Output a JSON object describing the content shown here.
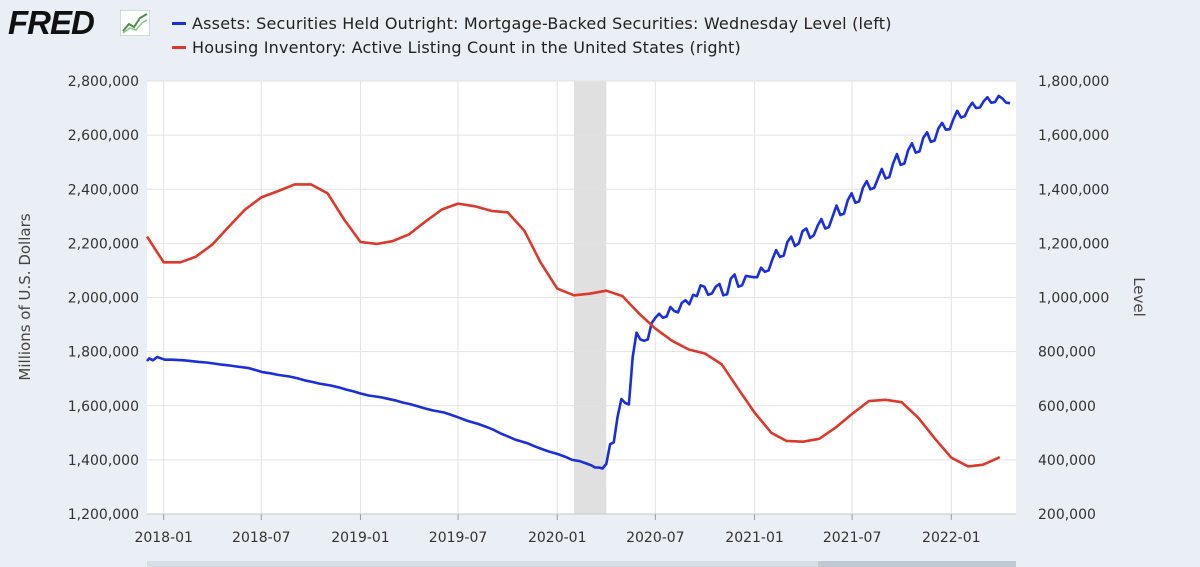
{
  "header": {
    "logo_text": "FRED"
  },
  "chart_data": {
    "type": "line",
    "title": "",
    "legend": [
      {
        "name": "Assets: Securities Held Outright: Mortgage-Backed Securities: Wednesday Level (left)",
        "color": "#1a2fd6"
      },
      {
        "name": "Housing Inventory: Active Listing Count in the United States (right)",
        "color": "#d93a2b"
      }
    ],
    "left_axis": {
      "label": "Millions of U.S. Dollars",
      "range": [
        1200000,
        2800000
      ],
      "ticks": [
        1200000,
        1400000,
        1600000,
        1800000,
        2000000,
        2200000,
        2400000,
        2600000,
        2800000
      ],
      "tick_labels": [
        "1,200,000",
        "1,400,000",
        "1,600,000",
        "1,800,000",
        "2,000,000",
        "2,200,000",
        "2,400,000",
        "2,600,000",
        "2,800,000"
      ]
    },
    "right_axis": {
      "label": "Level",
      "range": [
        200000,
        1800000
      ],
      "ticks": [
        200000,
        400000,
        600000,
        800000,
        1000000,
        1200000,
        1400000,
        1600000,
        1800000
      ],
      "tick_labels": [
        "200,000",
        "400,000",
        "600,000",
        "800,000",
        "1,000,000",
        "1,200,000",
        "1,400,000",
        "1,600,000",
        "1,800,000"
      ]
    },
    "x_axis": {
      "range": [
        "2017-12",
        "2022-05"
      ],
      "ticks": [
        "2018-01",
        "2018-07",
        "2019-01",
        "2019-07",
        "2020-01",
        "2020-07",
        "2021-01",
        "2021-07",
        "2022-01"
      ]
    },
    "recession": {
      "start": "2020-02",
      "end": "2020-04"
    },
    "series": [
      {
        "name": "Mortgage-Backed Securities (left)",
        "axis": "left",
        "color": "#1a2fd6",
        "points": [
          [
            "2017-12-01",
            1765000
          ],
          [
            "2017-12-05",
            1775000
          ],
          [
            "2017-12-12",
            1768000
          ],
          [
            "2017-12-20",
            1780000
          ],
          [
            "2018-01-03",
            1770000
          ],
          [
            "2018-01-17",
            1770000
          ],
          [
            "2018-02-07",
            1768000
          ],
          [
            "2018-02-21",
            1765000
          ],
          [
            "2018-03-07",
            1762000
          ],
          [
            "2018-03-21",
            1760000
          ],
          [
            "2018-04-04",
            1756000
          ],
          [
            "2018-04-18",
            1752000
          ],
          [
            "2018-05-02",
            1749000
          ],
          [
            "2018-05-16",
            1745000
          ],
          [
            "2018-06-06",
            1740000
          ],
          [
            "2018-06-20",
            1732000
          ],
          [
            "2018-07-04",
            1724000
          ],
          [
            "2018-07-18",
            1720000
          ],
          [
            "2018-08-01",
            1714000
          ],
          [
            "2018-08-22",
            1708000
          ],
          [
            "2018-09-05",
            1702000
          ],
          [
            "2018-09-19",
            1694000
          ],
          [
            "2018-10-03",
            1688000
          ],
          [
            "2018-10-17",
            1682000
          ],
          [
            "2018-11-07",
            1675000
          ],
          [
            "2018-11-21",
            1668000
          ],
          [
            "2018-12-05",
            1660000
          ],
          [
            "2018-12-19",
            1653000
          ],
          [
            "2019-01-02",
            1645000
          ],
          [
            "2019-01-16",
            1638000
          ],
          [
            "2019-02-06",
            1632000
          ],
          [
            "2019-02-20",
            1626000
          ],
          [
            "2019-03-06",
            1620000
          ],
          [
            "2019-03-20",
            1612000
          ],
          [
            "2019-04-03",
            1606000
          ],
          [
            "2019-04-17",
            1598000
          ],
          [
            "2019-05-01",
            1590000
          ],
          [
            "2019-05-15",
            1583000
          ],
          [
            "2019-06-05",
            1575000
          ],
          [
            "2019-06-19",
            1566000
          ],
          [
            "2019-07-03",
            1556000
          ],
          [
            "2019-07-17",
            1545000
          ],
          [
            "2019-08-07",
            1533000
          ],
          [
            "2019-08-21",
            1523000
          ],
          [
            "2019-09-04",
            1512000
          ],
          [
            "2019-09-18",
            1498000
          ],
          [
            "2019-10-02",
            1486000
          ],
          [
            "2019-10-16",
            1474000
          ],
          [
            "2019-11-06",
            1462000
          ],
          [
            "2019-11-20",
            1450000
          ],
          [
            "2019-12-04",
            1440000
          ],
          [
            "2019-12-18",
            1430000
          ],
          [
            "2020-01-01",
            1422000
          ],
          [
            "2020-01-15",
            1412000
          ],
          [
            "2020-01-29",
            1400000
          ],
          [
            "2020-02-12",
            1395000
          ],
          [
            "2020-02-26",
            1385000
          ],
          [
            "2020-03-04",
            1380000
          ],
          [
            "2020-03-11",
            1372000
          ],
          [
            "2020-03-18",
            1372000
          ],
          [
            "2020-03-25",
            1368000
          ],
          [
            "2020-04-01",
            1385000
          ],
          [
            "2020-04-08",
            1458000
          ],
          [
            "2020-04-15",
            1465000
          ],
          [
            "2020-04-22",
            1560000
          ],
          [
            "2020-04-29",
            1625000
          ],
          [
            "2020-05-06",
            1610000
          ],
          [
            "2020-05-13",
            1605000
          ],
          [
            "2020-05-20",
            1780000
          ],
          [
            "2020-05-27",
            1870000
          ],
          [
            "2020-06-03",
            1845000
          ],
          [
            "2020-06-10",
            1840000
          ],
          [
            "2020-06-17",
            1845000
          ],
          [
            "2020-06-24",
            1905000
          ],
          [
            "2020-07-01",
            1925000
          ],
          [
            "2020-07-08",
            1940000
          ],
          [
            "2020-07-15",
            1925000
          ],
          [
            "2020-07-22",
            1930000
          ],
          [
            "2020-07-29",
            1965000
          ],
          [
            "2020-08-05",
            1950000
          ],
          [
            "2020-08-12",
            1945000
          ],
          [
            "2020-08-19",
            1980000
          ],
          [
            "2020-08-26",
            1990000
          ],
          [
            "2020-09-02",
            1975000
          ],
          [
            "2020-09-09",
            2010000
          ],
          [
            "2020-09-16",
            2005000
          ],
          [
            "2020-09-23",
            2045000
          ],
          [
            "2020-09-30",
            2040000
          ],
          [
            "2020-10-07",
            2010000
          ],
          [
            "2020-10-14",
            2015000
          ],
          [
            "2020-10-21",
            2040000
          ],
          [
            "2020-10-28",
            2050000
          ],
          [
            "2020-11-04",
            2008000
          ],
          [
            "2020-11-11",
            2012000
          ],
          [
            "2020-11-18",
            2070000
          ],
          [
            "2020-11-25",
            2085000
          ],
          [
            "2020-12-02",
            2040000
          ],
          [
            "2020-12-09",
            2045000
          ],
          [
            "2020-12-16",
            2080000
          ],
          [
            "2020-12-30",
            2075000
          ],
          [
            "2021-01-06",
            2075000
          ],
          [
            "2021-01-13",
            2110000
          ],
          [
            "2021-01-20",
            2095000
          ],
          [
            "2021-01-27",
            2100000
          ],
          [
            "2021-02-03",
            2140000
          ],
          [
            "2021-02-10",
            2175000
          ],
          [
            "2021-02-17",
            2150000
          ],
          [
            "2021-02-24",
            2155000
          ],
          [
            "2021-03-03",
            2205000
          ],
          [
            "2021-03-10",
            2225000
          ],
          [
            "2021-03-17",
            2190000
          ],
          [
            "2021-03-24",
            2200000
          ],
          [
            "2021-03-31",
            2245000
          ],
          [
            "2021-04-07",
            2255000
          ],
          [
            "2021-04-14",
            2220000
          ],
          [
            "2021-04-21",
            2230000
          ],
          [
            "2021-04-28",
            2265000
          ],
          [
            "2021-05-05",
            2290000
          ],
          [
            "2021-05-12",
            2255000
          ],
          [
            "2021-05-19",
            2260000
          ],
          [
            "2021-05-26",
            2300000
          ],
          [
            "2021-06-02",
            2340000
          ],
          [
            "2021-06-09",
            2305000
          ],
          [
            "2021-06-16",
            2310000
          ],
          [
            "2021-06-23",
            2360000
          ],
          [
            "2021-06-30",
            2385000
          ],
          [
            "2021-07-07",
            2350000
          ],
          [
            "2021-07-14",
            2355000
          ],
          [
            "2021-07-21",
            2405000
          ],
          [
            "2021-07-28",
            2430000
          ],
          [
            "2021-08-04",
            2400000
          ],
          [
            "2021-08-11",
            2405000
          ],
          [
            "2021-08-18",
            2440000
          ],
          [
            "2021-08-25",
            2475000
          ],
          [
            "2021-09-01",
            2440000
          ],
          [
            "2021-09-08",
            2445000
          ],
          [
            "2021-09-15",
            2495000
          ],
          [
            "2021-09-22",
            2530000
          ],
          [
            "2021-09-29",
            2490000
          ],
          [
            "2021-10-06",
            2495000
          ],
          [
            "2021-10-13",
            2545000
          ],
          [
            "2021-10-20",
            2570000
          ],
          [
            "2021-10-27",
            2535000
          ],
          [
            "2021-11-03",
            2540000
          ],
          [
            "2021-11-10",
            2590000
          ],
          [
            "2021-11-17",
            2610000
          ],
          [
            "2021-11-24",
            2575000
          ],
          [
            "2021-12-01",
            2580000
          ],
          [
            "2021-12-08",
            2625000
          ],
          [
            "2021-12-15",
            2645000
          ],
          [
            "2021-12-22",
            2620000
          ],
          [
            "2021-12-29",
            2622000
          ],
          [
            "2022-01-05",
            2660000
          ],
          [
            "2022-01-12",
            2690000
          ],
          [
            "2022-01-19",
            2665000
          ],
          [
            "2022-01-26",
            2670000
          ],
          [
            "2022-02-02",
            2700000
          ],
          [
            "2022-02-09",
            2720000
          ],
          [
            "2022-02-16",
            2700000
          ],
          [
            "2022-02-23",
            2702000
          ],
          [
            "2022-03-02",
            2725000
          ],
          [
            "2022-03-09",
            2740000
          ],
          [
            "2022-03-16",
            2720000
          ],
          [
            "2022-03-23",
            2722000
          ],
          [
            "2022-03-30",
            2745000
          ],
          [
            "2022-04-06",
            2735000
          ],
          [
            "2022-04-13",
            2720000
          ],
          [
            "2022-04-20",
            2718000
          ]
        ]
      },
      {
        "name": "Housing Inventory Active Listing Count (right)",
        "axis": "right",
        "color": "#d93a2b",
        "points": [
          [
            "2017-12-01",
            1225000
          ],
          [
            "2018-01-01",
            1130000
          ],
          [
            "2018-02-01",
            1130000
          ],
          [
            "2018-03-01",
            1150000
          ],
          [
            "2018-04-01",
            1195000
          ],
          [
            "2018-05-01",
            1260000
          ],
          [
            "2018-06-01",
            1325000
          ],
          [
            "2018-07-01",
            1370000
          ],
          [
            "2018-08-01",
            1393000
          ],
          [
            "2018-09-01",
            1418000
          ],
          [
            "2018-10-01",
            1418000
          ],
          [
            "2018-11-01",
            1385000
          ],
          [
            "2018-12-01",
            1290000
          ],
          [
            "2019-01-01",
            1205000
          ],
          [
            "2019-02-01",
            1198000
          ],
          [
            "2019-03-01",
            1208000
          ],
          [
            "2019-04-01",
            1233000
          ],
          [
            "2019-05-01",
            1280000
          ],
          [
            "2019-06-01",
            1325000
          ],
          [
            "2019-07-01",
            1347000
          ],
          [
            "2019-08-01",
            1337000
          ],
          [
            "2019-09-01",
            1320000
          ],
          [
            "2019-10-01",
            1315000
          ],
          [
            "2019-11-01",
            1247000
          ],
          [
            "2019-12-01",
            1130000
          ],
          [
            "2020-01-01",
            1033000
          ],
          [
            "2020-02-01",
            1008000
          ],
          [
            "2020-03-01",
            1014000
          ],
          [
            "2020-04-01",
            1025000
          ],
          [
            "2020-05-01",
            1005000
          ],
          [
            "2020-06-01",
            940000
          ],
          [
            "2020-07-01",
            885000
          ],
          [
            "2020-08-01",
            840000
          ],
          [
            "2020-09-01",
            808000
          ],
          [
            "2020-10-01",
            793000
          ],
          [
            "2020-11-01",
            753000
          ],
          [
            "2020-12-01",
            665000
          ],
          [
            "2021-01-01",
            575000
          ],
          [
            "2021-02-01",
            500000
          ],
          [
            "2021-03-01",
            470000
          ],
          [
            "2021-04-01",
            467000
          ],
          [
            "2021-05-01",
            478000
          ],
          [
            "2021-06-01",
            520000
          ],
          [
            "2021-07-01",
            570000
          ],
          [
            "2021-08-01",
            617000
          ],
          [
            "2021-09-01",
            622000
          ],
          [
            "2021-10-01",
            613000
          ],
          [
            "2021-11-01",
            555000
          ],
          [
            "2021-12-01",
            480000
          ],
          [
            "2022-01-01",
            408000
          ],
          [
            "2022-02-01",
            376000
          ],
          [
            "2022-03-01",
            382000
          ],
          [
            "2022-04-01",
            410000
          ]
        ]
      }
    ]
  }
}
